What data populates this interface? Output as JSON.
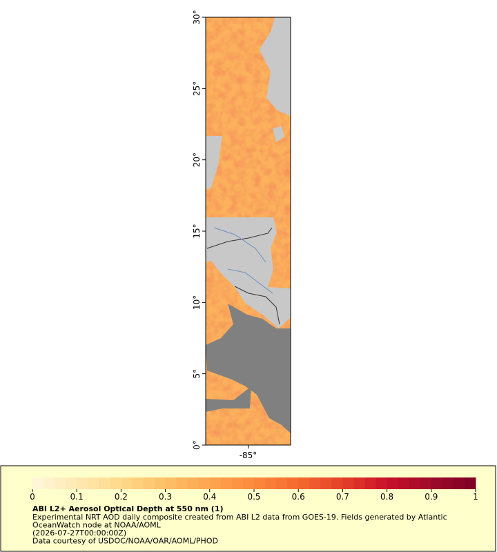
{
  "map": {
    "lat_range": [
      0,
      30
    ],
    "lon_range": [
      -88,
      -82
    ],
    "lat_ticks": [
      {
        "value": 0,
        "label": "0°"
      },
      {
        "value": 5,
        "label": "5°"
      },
      {
        "value": 10,
        "label": "10°"
      },
      {
        "value": 15,
        "label": "15°"
      },
      {
        "value": 20,
        "label": "20°"
      },
      {
        "value": 25,
        "label": "25°"
      },
      {
        "value": 30,
        "label": "30°"
      }
    ],
    "lon_ticks": [
      {
        "value": -85,
        "label": "-85°"
      }
    ]
  },
  "legend": {
    "title": "ABI L2+ Aerosol Optical Depth at 550 nm (1)",
    "colorbar": {
      "range": [
        0,
        1
      ],
      "ticks": [
        0,
        0.1,
        0.2,
        0.3,
        0.4,
        0.5,
        0.6,
        0.7,
        0.8,
        0.9,
        1
      ],
      "colormap": [
        "#fff7dc",
        "#fee9b2",
        "#fed98a",
        "#fdc067",
        "#fda54f",
        "#fc8a3d",
        "#f46a2e",
        "#e4402a",
        "#c8102a",
        "#9e0a2a",
        "#7d0025"
      ]
    },
    "lines": [
      "Experimental NRT AOD daily composite created from ABI L2 data from GOES-19. Fields generated by Atlantic",
      "OceanWatch node at NOAA/AOML",
      "(2026-07-27T00:00:00Z)",
      "Data courtesy of USDOC/NOAA/OAR/AOML/PHOD"
    ]
  }
}
